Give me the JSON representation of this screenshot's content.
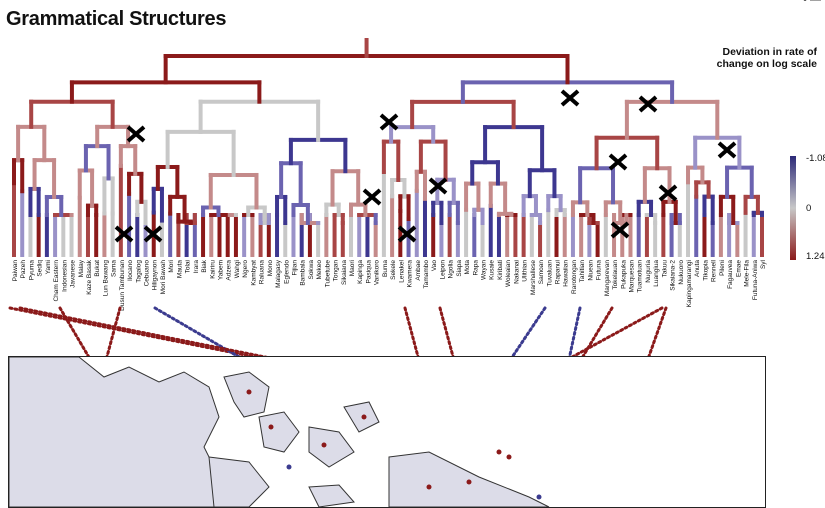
{
  "title": "Grammatical Structures",
  "corner_mark": "• —",
  "legend": {
    "title_line1": "Deviation in rate of",
    "title_line2": "change on log scale",
    "ticks": [
      "-1.08",
      "0",
      "1.24"
    ],
    "color_high": "#2d2a78",
    "color_mid": "#c8c8c8",
    "color_low": "#8b1a1a"
  },
  "languages": [
    "Paiwan",
    "Pazeh",
    "Pyuma",
    "Sediq",
    "Yami",
    "Cham Eastern",
    "Indonesian",
    "Javanese",
    "Malay",
    "Kaze Basak",
    "Bukat",
    "Lun Bawang",
    "Sama",
    "Dusun Tambunan",
    "Ilocano",
    "Tagalog",
    "Cebuano",
    "Hiligaynon",
    "Mori Bawah",
    "Mori",
    "Mauta",
    "Tolai",
    "Irara",
    "Biak",
    "Kairiru",
    "Yabem",
    "Adzera",
    "Wahgi",
    "Ngero",
    "Kambyat",
    "Raluana",
    "Mono",
    "Malagasy",
    "Eglendo",
    "Fijian",
    "Bambala",
    "Sokwa",
    "Mekeo",
    "Tubetube",
    "Tongan",
    "Sikaiana",
    "Maori",
    "Kapinga",
    "Pasiqua",
    "Vanikoro",
    "Buma",
    "Sekele",
    "Lenakel",
    "Kwamera",
    "Ambae",
    "Tamambo",
    "Vao",
    "Leipon",
    "Ngolia",
    "Siapa",
    "Mota",
    "Rapa",
    "Wayan",
    "Kusaie",
    "Kiribati",
    "Woleaian",
    "Nakanai",
    "Ulithian",
    "Marshallese",
    "Samoan",
    "Tuvaluan",
    "Rapanui",
    "Hawaiian",
    "Rarotongan",
    "Tahitian",
    "Niuean",
    "Futuna",
    "Mangarevan",
    "Tokelauan",
    "Pukapuka",
    "Marquesan",
    "Tuamotuan",
    "Nuguria",
    "Luangiua",
    "Takuu",
    "Sikaiana-2",
    "Nukuoro",
    "Kapingamarangi",
    "Anuta",
    "Tikopia",
    "Rennell",
    "Pileni",
    "Fagauvea",
    "Emae",
    "Mele-Fila",
    "Futuna-Aniwa",
    "Syl"
  ],
  "crosses": 13,
  "map": {
    "region": "Island Southeast Asia and Pacific",
    "flow_colors": [
      "#8b1a1a",
      "#3b3b8f"
    ]
  }
}
